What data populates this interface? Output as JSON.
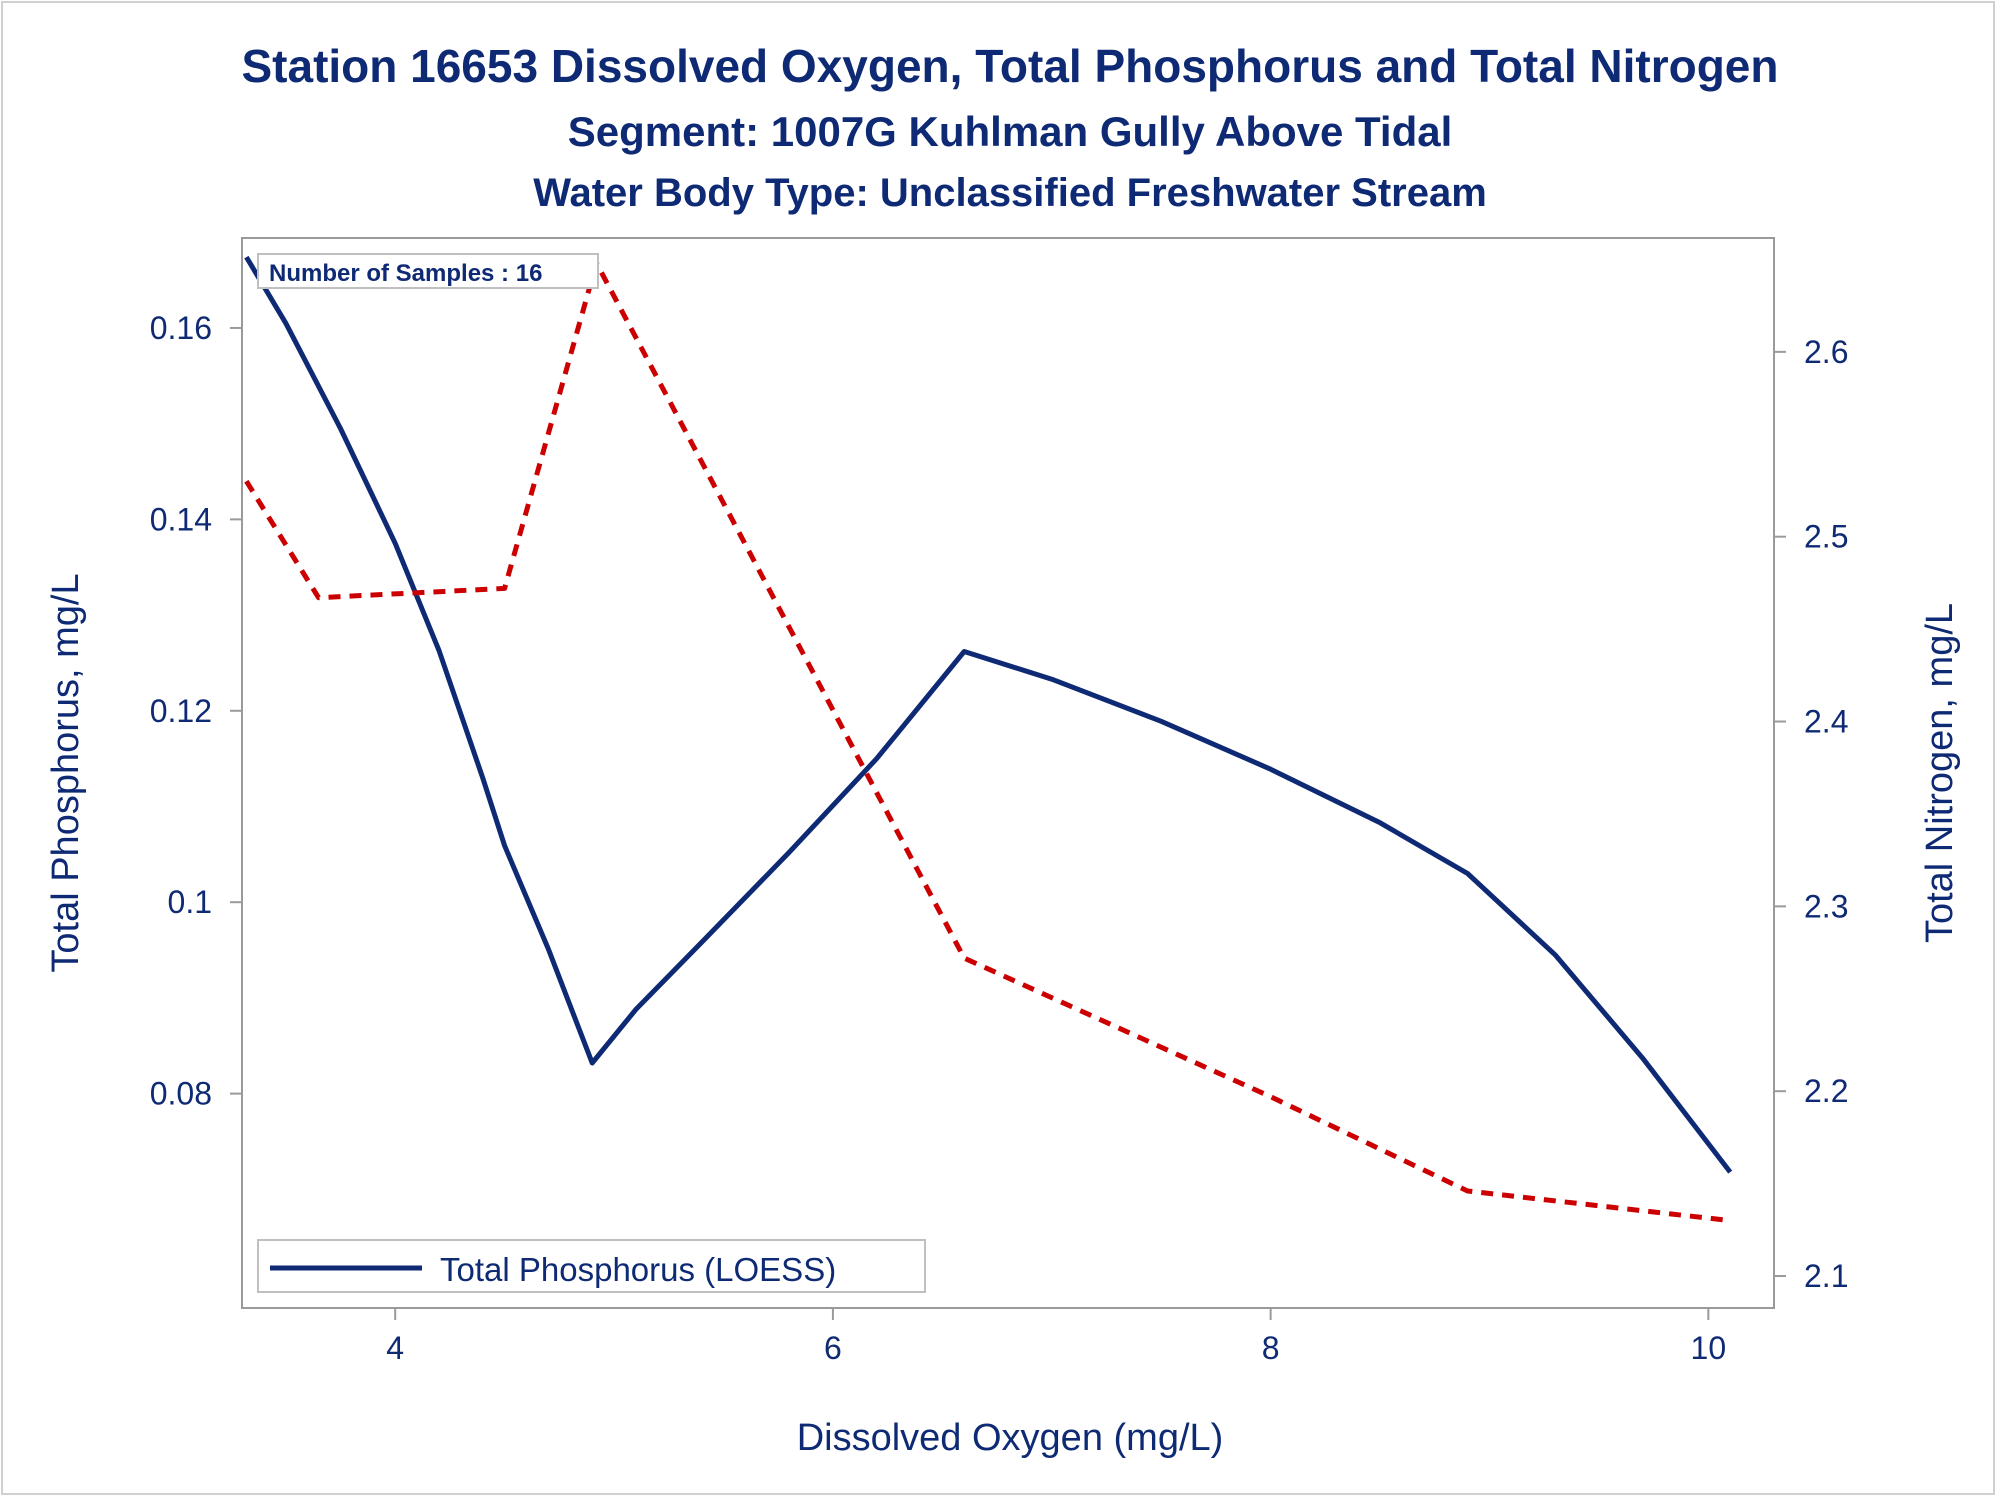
{
  "chart_data": {
    "type": "line",
    "title": "Station 16653  Dissolved Oxygen, Total Phosphorus and Total Nitrogen",
    "subtitle": "Segment: 1007G  Kuhlman Gully Above Tidal",
    "subtitle2": "Water Body Type: Unclassified Freshwater Stream",
    "xlabel": "Dissolved Oxygen (mg/L)",
    "ylabel": "Total Phosphorus, mg/L",
    "y2label": "Total Nitrogen, mg/L",
    "annotation": "Number of Samples : 16",
    "legend_position": "bottom-left",
    "grid": false,
    "xlim": [
      3.3,
      10.3
    ],
    "ylim": [
      0.0576,
      0.1694
    ],
    "y2lim": [
      2.0827,
      2.6616
    ],
    "x_ticks": [
      {
        "value": 4,
        "label": "4"
      },
      {
        "value": 6,
        "label": "6"
      },
      {
        "value": 8,
        "label": "8"
      },
      {
        "value": 10,
        "label": "10"
      }
    ],
    "y_ticks": [
      {
        "value": 0.08,
        "label": "0.08"
      },
      {
        "value": 0.1,
        "label": "0.1"
      },
      {
        "value": 0.12,
        "label": "0.12"
      },
      {
        "value": 0.14,
        "label": "0.14"
      },
      {
        "value": 0.16,
        "label": "0.16"
      }
    ],
    "y2_ticks": [
      {
        "value": 2.1,
        "label": "2.1"
      },
      {
        "value": 2.2,
        "label": "2.2"
      },
      {
        "value": 2.3,
        "label": "2.3"
      },
      {
        "value": 2.4,
        "label": "2.4"
      },
      {
        "value": 2.5,
        "label": "2.5"
      },
      {
        "value": 2.6,
        "label": "2.6"
      }
    ],
    "series": [
      {
        "name": "Total Phosphorus (LOESS)",
        "axis": "left",
        "style": "solid",
        "color": "#0f2a74",
        "show_in_legend": true,
        "x": [
          3.32,
          3.5,
          3.75,
          4.0,
          4.2,
          4.4,
          4.5,
          4.7,
          4.9,
          5.1,
          5.4,
          5.8,
          6.2,
          6.6,
          7.0,
          7.5,
          8.0,
          8.5,
          8.9,
          9.3,
          9.7,
          10.1
        ],
        "values": [
          0.1674,
          0.1605,
          0.1495,
          0.1375,
          0.1263,
          0.113,
          0.1059,
          0.0951,
          0.0832,
          0.0888,
          0.0958,
          0.1052,
          0.115,
          0.1262,
          0.1233,
          0.1189,
          0.1139,
          0.1083,
          0.103,
          0.0945,
          0.0837,
          0.0718
        ]
      },
      {
        "name": "",
        "axis": "right",
        "style": "dashed",
        "color": "#cc0000",
        "show_in_legend": false,
        "x": [
          3.32,
          3.65,
          4.5,
          4.92,
          6.6,
          8.0,
          8.9,
          10.1
        ],
        "values": [
          2.53,
          2.467,
          2.472,
          2.648,
          2.272,
          2.197,
          2.146,
          2.13
        ]
      }
    ]
  }
}
